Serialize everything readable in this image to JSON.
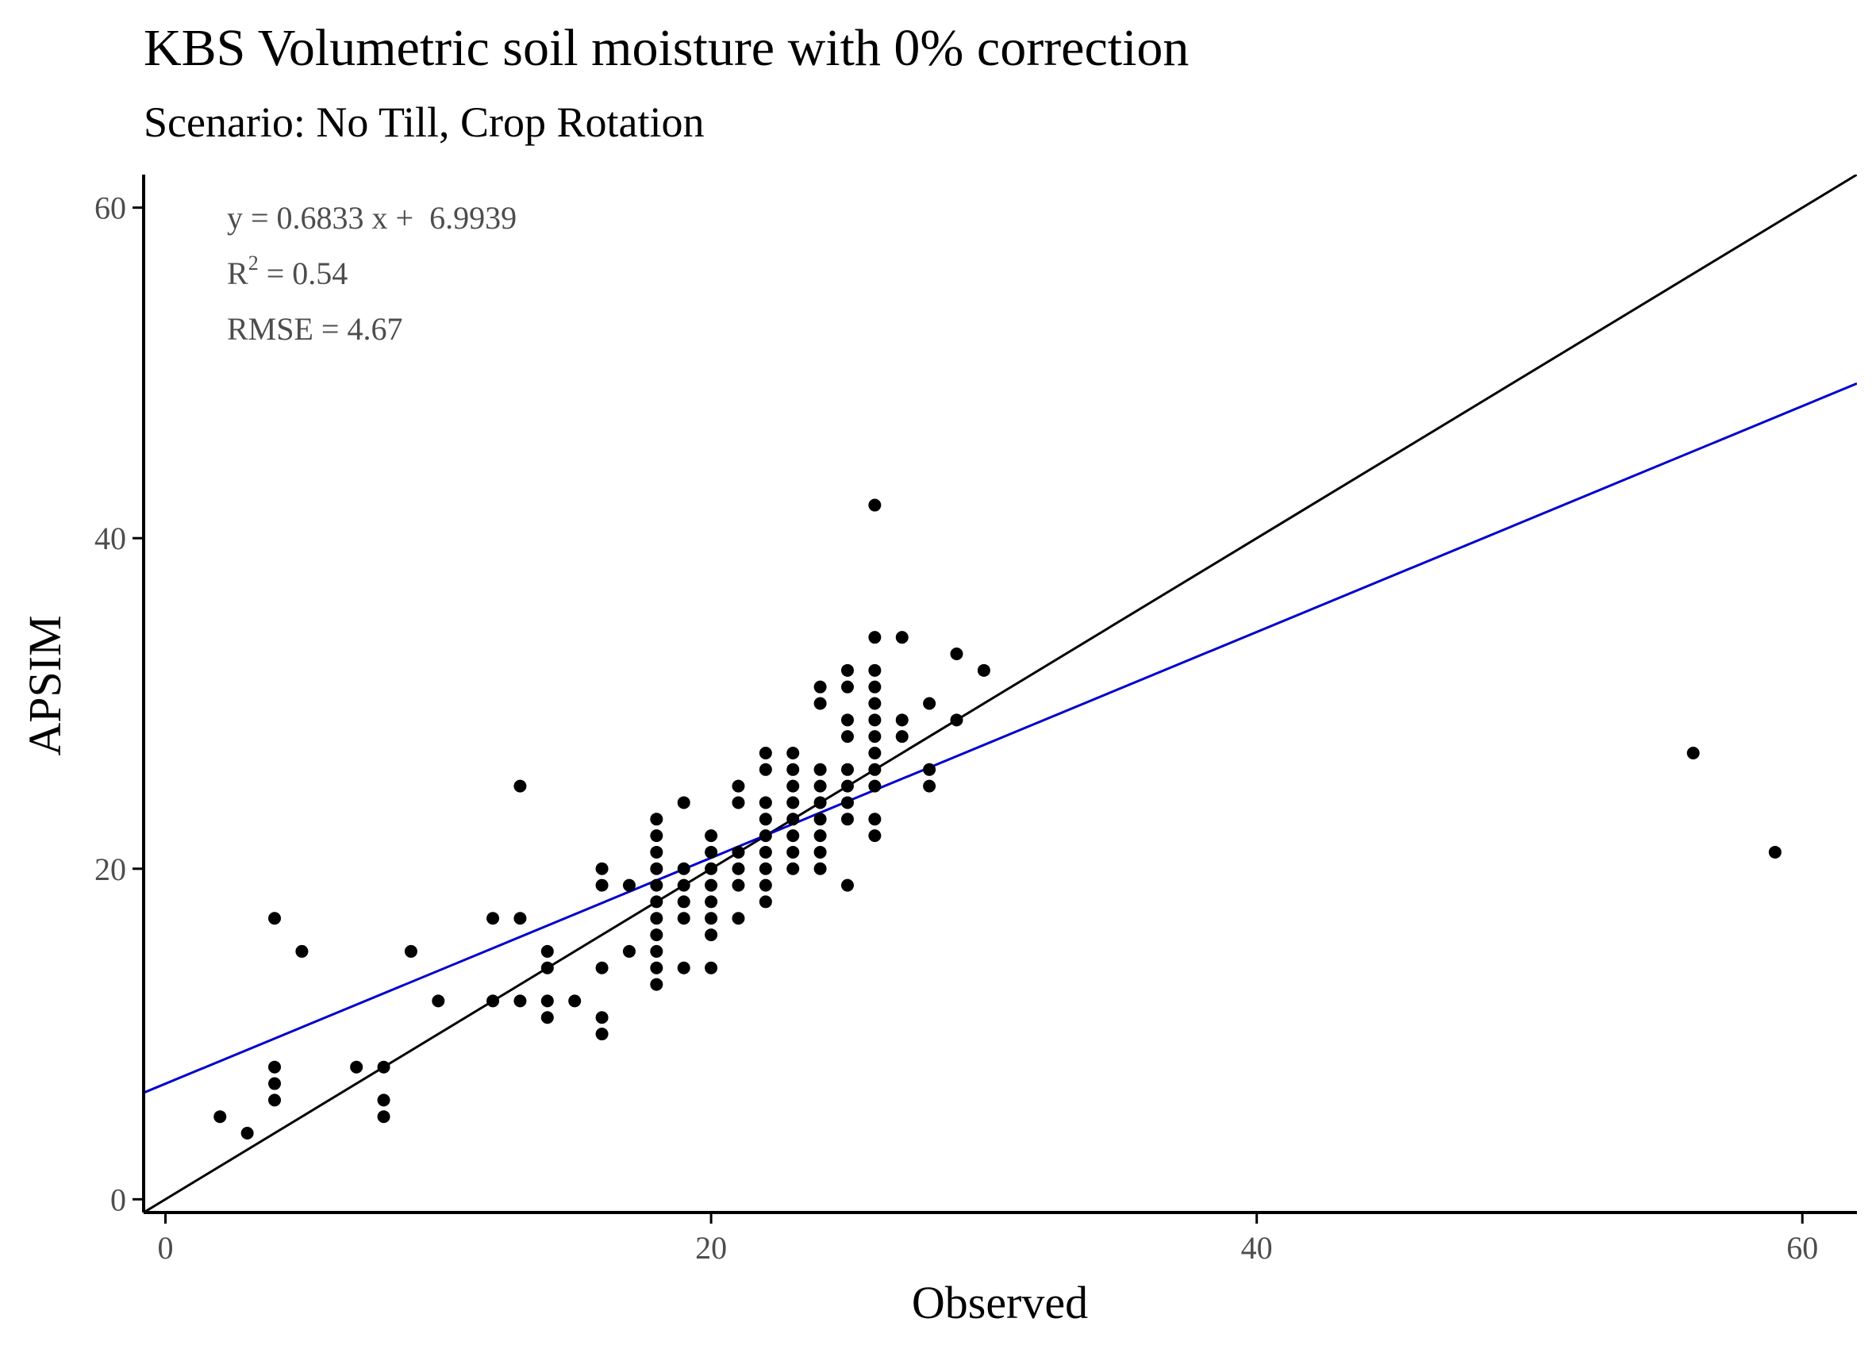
{
  "chart_data": {
    "type": "scatter",
    "title": "KBS Volumetric soil moisture with 0% correction",
    "subtitle": "Scenario: No Till, Crop Rotation",
    "xlabel": "Observed",
    "ylabel": "APSIM",
    "xlim": [
      -0.8,
      62
    ],
    "ylim": [
      -0.8,
      62
    ],
    "x_ticks": [
      "0",
      "20",
      "40",
      "60"
    ],
    "y_ticks": [
      "0",
      "20",
      "40",
      "60"
    ],
    "x_tick_values": [
      0,
      20,
      40,
      60
    ],
    "y_tick_values": [
      0,
      20,
      40,
      60
    ],
    "grid": false,
    "annotations": {
      "equation": "y = 0.6833 x +  6.9939",
      "r2_label": "R",
      "r2_sup": "2",
      "r2_value": " = 0.54",
      "rmse": "RMSE = 4.67"
    },
    "lines": [
      {
        "name": "1:1 line",
        "intercept": 0,
        "slope": 1,
        "color": "#000000"
      },
      {
        "name": "regression",
        "intercept": 6.9939,
        "slope": 0.6833,
        "color": "#0000cc"
      }
    ],
    "point_color": "#000000",
    "points": [
      [
        2,
        5
      ],
      [
        3,
        4
      ],
      [
        4,
        17
      ],
      [
        4,
        8
      ],
      [
        4,
        7
      ],
      [
        4,
        6
      ],
      [
        5,
        15
      ],
      [
        7,
        8
      ],
      [
        8,
        8
      ],
      [
        8,
        6
      ],
      [
        8,
        5
      ],
      [
        9,
        15
      ],
      [
        10,
        12
      ],
      [
        12,
        17
      ],
      [
        12,
        12
      ],
      [
        13,
        25
      ],
      [
        13,
        17
      ],
      [
        13,
        12
      ],
      [
        14,
        15
      ],
      [
        14,
        14
      ],
      [
        14,
        12
      ],
      [
        14,
        11
      ],
      [
        15,
        12
      ],
      [
        16,
        20
      ],
      [
        16,
        19
      ],
      [
        16,
        14
      ],
      [
        16,
        11
      ],
      [
        16,
        10
      ],
      [
        17,
        19
      ],
      [
        17,
        15
      ],
      [
        18,
        23
      ],
      [
        18,
        22
      ],
      [
        18,
        21
      ],
      [
        18,
        20
      ],
      [
        18,
        19
      ],
      [
        18,
        18
      ],
      [
        18,
        17
      ],
      [
        18,
        16
      ],
      [
        18,
        15
      ],
      [
        18,
        14
      ],
      [
        18,
        13
      ],
      [
        19,
        24
      ],
      [
        19,
        20
      ],
      [
        19,
        19
      ],
      [
        19,
        18
      ],
      [
        19,
        17
      ],
      [
        19,
        14
      ],
      [
        20,
        22
      ],
      [
        20,
        21
      ],
      [
        20,
        20
      ],
      [
        20,
        19
      ],
      [
        20,
        18
      ],
      [
        20,
        17
      ],
      [
        20,
        16
      ],
      [
        20,
        14
      ],
      [
        21,
        25
      ],
      [
        21,
        24
      ],
      [
        21,
        21
      ],
      [
        21,
        20
      ],
      [
        21,
        19
      ],
      [
        21,
        17
      ],
      [
        22,
        27
      ],
      [
        22,
        26
      ],
      [
        22,
        24
      ],
      [
        22,
        23
      ],
      [
        22,
        22
      ],
      [
        22,
        21
      ],
      [
        22,
        20
      ],
      [
        22,
        19
      ],
      [
        22,
        18
      ],
      [
        23,
        27
      ],
      [
        23,
        26
      ],
      [
        23,
        25
      ],
      [
        23,
        24
      ],
      [
        23,
        23
      ],
      [
        23,
        22
      ],
      [
        23,
        21
      ],
      [
        23,
        20
      ],
      [
        24,
        31
      ],
      [
        24,
        30
      ],
      [
        24,
        26
      ],
      [
        24,
        25
      ],
      [
        24,
        24
      ],
      [
        24,
        23
      ],
      [
        24,
        22
      ],
      [
        24,
        21
      ],
      [
        24,
        20
      ],
      [
        25,
        32
      ],
      [
        25,
        31
      ],
      [
        25,
        29
      ],
      [
        25,
        28
      ],
      [
        25,
        26
      ],
      [
        25,
        25
      ],
      [
        25,
        24
      ],
      [
        25,
        23
      ],
      [
        25,
        19
      ],
      [
        26,
        42
      ],
      [
        26,
        34
      ],
      [
        26,
        32
      ],
      [
        26,
        31
      ],
      [
        26,
        30
      ],
      [
        26,
        29
      ],
      [
        26,
        28
      ],
      [
        26,
        27
      ],
      [
        26,
        26
      ],
      [
        26,
        25
      ],
      [
        26,
        23
      ],
      [
        26,
        22
      ],
      [
        27,
        34
      ],
      [
        27,
        29
      ],
      [
        27,
        28
      ],
      [
        28,
        30
      ],
      [
        28,
        26
      ],
      [
        28,
        25
      ],
      [
        29,
        33
      ],
      [
        29,
        29
      ],
      [
        30,
        32
      ],
      [
        56,
        27
      ],
      [
        59,
        21
      ]
    ]
  }
}
